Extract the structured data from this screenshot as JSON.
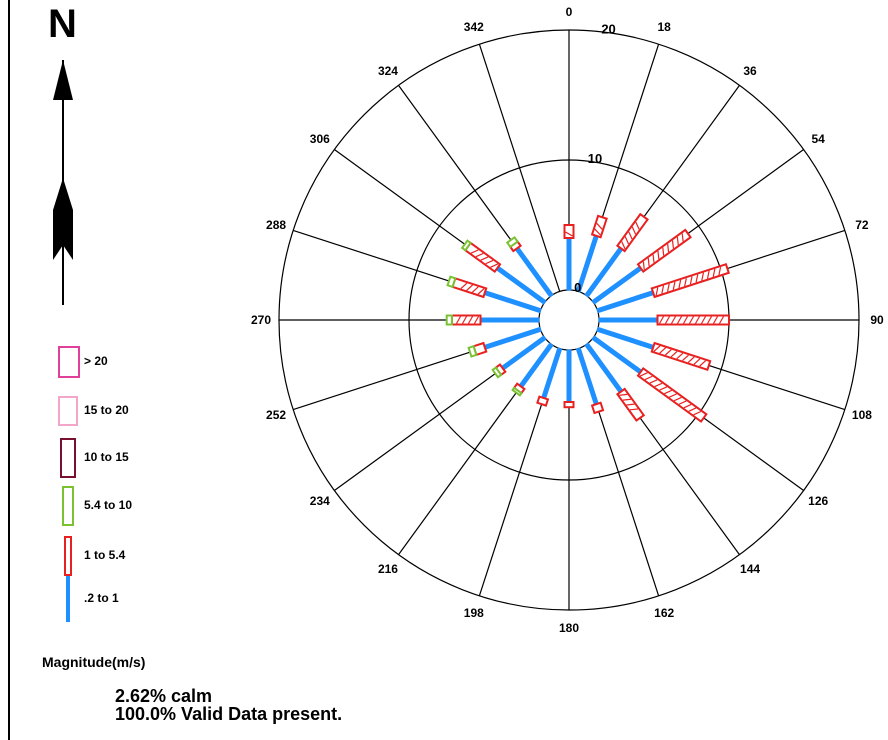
{
  "compass": {
    "north_label": "N"
  },
  "legend": {
    "title": "Magnitude(m/s)",
    "items": [
      {
        "label": "> 20",
        "color": "#e0409a",
        "fill": "#ffffff"
      },
      {
        "label": "15 to 20",
        "color": "#f2a6c9",
        "fill": "#ffffff"
      },
      {
        "label": "10 to 15",
        "color": "#7a1030",
        "fill": "#ffffff"
      },
      {
        "label": "5.4 to 10",
        "color": "#7ac232",
        "fill": "#ffffff"
      },
      {
        "label": "1 to 5.4",
        "color": "#e82020",
        "fill": "#ffffff"
      },
      {
        "label": ".2 to 1",
        "color": "#1e90ff",
        "fill": "#1e90ff"
      }
    ]
  },
  "notes": {
    "calm": "2.62% calm",
    "valid": "100.0% Valid Data present."
  },
  "chart_data": {
    "type": "wind rose",
    "title": "",
    "unit": "Magnitude(m/s)",
    "directions": [
      0,
      18,
      36,
      54,
      72,
      90,
      108,
      126,
      144,
      162,
      180,
      198,
      216,
      234,
      252,
      270,
      288,
      306,
      324,
      342
    ],
    "direction_labels": [
      "0",
      "18",
      "36",
      "54",
      "72",
      "90",
      "108",
      "126",
      "144",
      "162",
      "180",
      "198",
      "216",
      "234",
      "252",
      "270",
      "288",
      "306",
      "324",
      "342"
    ],
    "ring_values": [
      0,
      10,
      20
    ],
    "ring_labels": [
      "0",
      "10",
      "20"
    ],
    "rmax": 20,
    "petal_directions": [
      0,
      18,
      36,
      54,
      72,
      90,
      108,
      126,
      144,
      162,
      180,
      198,
      216,
      234,
      252,
      270,
      288,
      306,
      324
    ],
    "series": [
      {
        "name": ".2 to 1",
        "color": "#1e90ff",
        "values": [
          4.0,
          4.5,
          4.5,
          4.5,
          4.5,
          4.5,
          4.5,
          4.5,
          4.5,
          4.5,
          4.0,
          4.0,
          4.0,
          4.0,
          4.5,
          4.5,
          4.5,
          4.5,
          4.5
        ]
      },
      {
        "name": "1 to 5.4",
        "color": "#e82020",
        "values": [
          1.0,
          1.5,
          3.0,
          4.5,
          6.0,
          5.5,
          4.5,
          6.0,
          2.5,
          0.6,
          0.4,
          0.5,
          0.4,
          0.4,
          0.8,
          2.2,
          2.5,
          2.8,
          0.4
        ]
      },
      {
        "name": "5.4 to 10",
        "color": "#7ac232",
        "values": [
          0.0,
          0.0,
          0.0,
          0.0,
          0.0,
          0.0,
          0.0,
          0.0,
          0.0,
          0.0,
          0.0,
          0.0,
          0.2,
          0.3,
          0.4,
          0.4,
          0.4,
          0.3,
          0.4
        ]
      },
      {
        "name": "10 to 15",
        "color": "#7a1030",
        "values": [
          0,
          0,
          0,
          0,
          0,
          0,
          0,
          0,
          0,
          0,
          0,
          0,
          0,
          0,
          0,
          0,
          0,
          0,
          0
        ]
      },
      {
        "name": "15 to 20",
        "color": "#f2a6c9",
        "values": [
          0,
          0,
          0,
          0,
          0,
          0,
          0,
          0,
          0,
          0,
          0,
          0,
          0,
          0,
          0,
          0,
          0,
          0,
          0
        ]
      },
      {
        "name": "> 20",
        "color": "#e0409a",
        "values": [
          0,
          0,
          0,
          0,
          0,
          0,
          0,
          0,
          0,
          0,
          0,
          0,
          0,
          0,
          0,
          0,
          0,
          0,
          0
        ]
      }
    ],
    "calm_percent": 2.62,
    "valid_percent": 100.0
  }
}
